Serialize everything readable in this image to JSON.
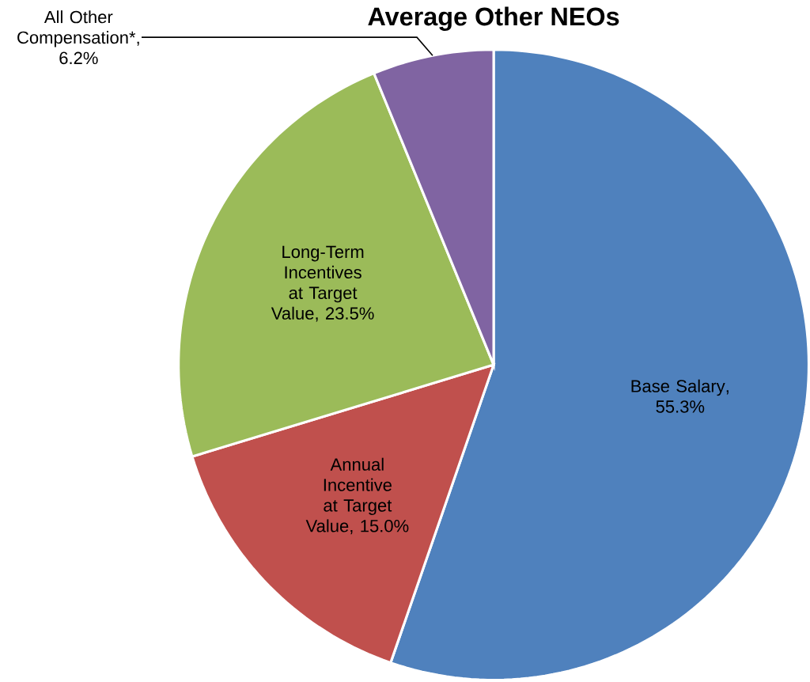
{
  "chart_data": {
    "type": "pie",
    "title": "Average Other NEOs",
    "categories": [
      "Base Salary",
      "Annual Incentive at Target Value",
      "Long-Term Incentives at Target Value",
      "All Other Compensation*"
    ],
    "values": [
      55.3,
      15.0,
      23.5,
      6.2
    ],
    "colors": [
      "#4f81bd",
      "#c0504d",
      "#9bbb59",
      "#8064a2"
    ],
    "value_labels": [
      ", 55.3%",
      ", 15.0%",
      ", 23.5%",
      ", 6.2%"
    ]
  }
}
